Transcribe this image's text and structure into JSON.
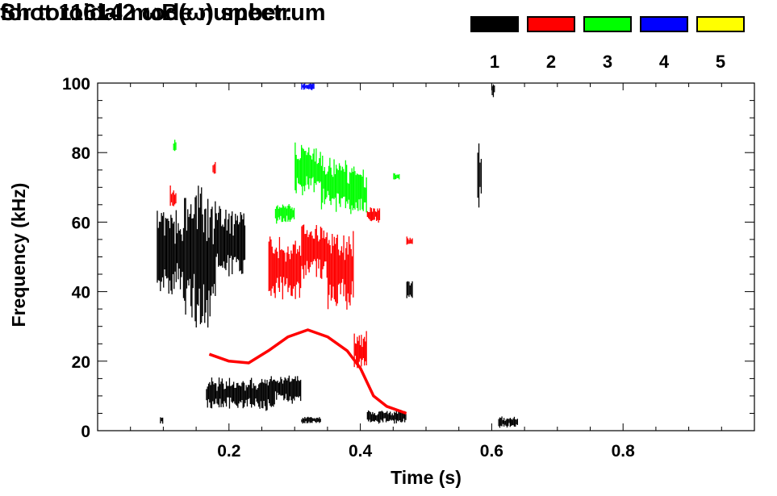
{
  "chart_data": {
    "type": "scatter",
    "title": "Shot 116142 ωB(ω) spectrum",
    "subtitle": "for toroidal mode number:",
    "xlabel": "Time (s)",
    "ylabel": "Frequency (kHz)",
    "xlim": [
      0.0,
      1.0
    ],
    "ylim": [
      0,
      100
    ],
    "xticks": [
      0.2,
      0.4,
      0.6,
      0.8
    ],
    "xtick_labels": [
      "0.2",
      "0.4",
      "0.6",
      "0.8"
    ],
    "yticks": [
      0,
      20,
      40,
      60,
      80,
      100
    ],
    "ytick_labels": [
      "0",
      "20",
      "40",
      "60",
      "80",
      "100"
    ],
    "grid": false,
    "legend_position": "top-right",
    "legend": [
      {
        "label": "1",
        "color": "#000000"
      },
      {
        "label": "2",
        "color": "#ff0000"
      },
      {
        "label": "3",
        "color": "#00ff00"
      },
      {
        "label": "4",
        "color": "#0000ff"
      },
      {
        "label": "5",
        "color": "#ffff00"
      }
    ],
    "series": [
      {
        "name": "n=1",
        "color": "#000000",
        "regions": [
          {
            "t": [
              0.09,
              0.13
            ],
            "f": [
              40,
              62
            ]
          },
          {
            "t": [
              0.13,
              0.18
            ],
            "f": [
              30,
              70
            ]
          },
          {
            "t": [
              0.18,
              0.225
            ],
            "f": [
              45,
              64
            ]
          },
          {
            "t": [
              0.165,
              0.27
            ],
            "f": [
              6,
              15
            ]
          },
          {
            "t": [
              0.27,
              0.31
            ],
            "f": [
              8,
              16
            ]
          },
          {
            "t": [
              0.41,
              0.47
            ],
            "f": [
              2,
              6
            ]
          },
          {
            "t": [
              0.47,
              0.48
            ],
            "f": [
              38,
              43
            ]
          },
          {
            "t": [
              0.578,
              0.585
            ],
            "f": [
              62,
              82
            ]
          },
          {
            "t": [
              0.6,
              0.605
            ],
            "f": [
              96,
              100
            ]
          },
          {
            "t": [
              0.61,
              0.64
            ],
            "f": [
              1,
              4
            ]
          },
          {
            "t": [
              0.095,
              0.1
            ],
            "f": [
              2,
              4
            ]
          },
          {
            "t": [
              0.31,
              0.34
            ],
            "f": [
              2,
              4
            ]
          }
        ]
      },
      {
        "name": "n=2",
        "color": "#ff0000",
        "regions": [
          {
            "t": [
              0.26,
              0.31
            ],
            "f": [
              38,
              55
            ]
          },
          {
            "t": [
              0.31,
              0.35
            ],
            "f": [
              44,
              60
            ]
          },
          {
            "t": [
              0.35,
              0.39
            ],
            "f": [
              36,
              56
            ]
          },
          {
            "t": [
              0.39,
              0.41
            ],
            "f": [
              18,
              28
            ]
          },
          {
            "t": [
              0.41,
              0.43
            ],
            "f": [
              60,
              64
            ]
          },
          {
            "t": [
              0.47,
              0.48
            ],
            "f": [
              53,
              56
            ]
          },
          {
            "t": [
              0.11,
              0.12
            ],
            "f": [
              64,
              70
            ]
          },
          {
            "t": [
              0.175,
              0.18
            ],
            "f": [
              73,
              78
            ]
          }
        ],
        "path": [
          [
            0.17,
            22
          ],
          [
            0.2,
            20
          ],
          [
            0.23,
            19.5
          ],
          [
            0.26,
            23
          ],
          [
            0.29,
            27
          ],
          [
            0.32,
            29
          ],
          [
            0.35,
            27
          ],
          [
            0.38,
            23
          ],
          [
            0.4,
            18
          ],
          [
            0.42,
            10
          ],
          [
            0.44,
            7
          ],
          [
            0.47,
            5
          ]
        ]
      },
      {
        "name": "n=3",
        "color": "#00ff00",
        "regions": [
          {
            "t": [
              0.3,
              0.34
            ],
            "f": [
              68,
              82
            ]
          },
          {
            "t": [
              0.34,
              0.38
            ],
            "f": [
              64,
              78
            ]
          },
          {
            "t": [
              0.38,
              0.41
            ],
            "f": [
              63,
              75
            ]
          },
          {
            "t": [
              0.27,
              0.3
            ],
            "f": [
              60,
              65
            ]
          },
          {
            "t": [
              0.45,
              0.46
            ],
            "f": [
              72,
              74
            ]
          },
          {
            "t": [
              0.115,
              0.12
            ],
            "f": [
              80,
              84
            ]
          }
        ]
      },
      {
        "name": "n=4",
        "color": "#0000ff",
        "regions": [
          {
            "t": [
              0.31,
              0.33
            ],
            "f": [
              98,
              100
            ]
          }
        ]
      },
      {
        "name": "n=5",
        "color": "#ffff00",
        "regions": []
      }
    ]
  }
}
